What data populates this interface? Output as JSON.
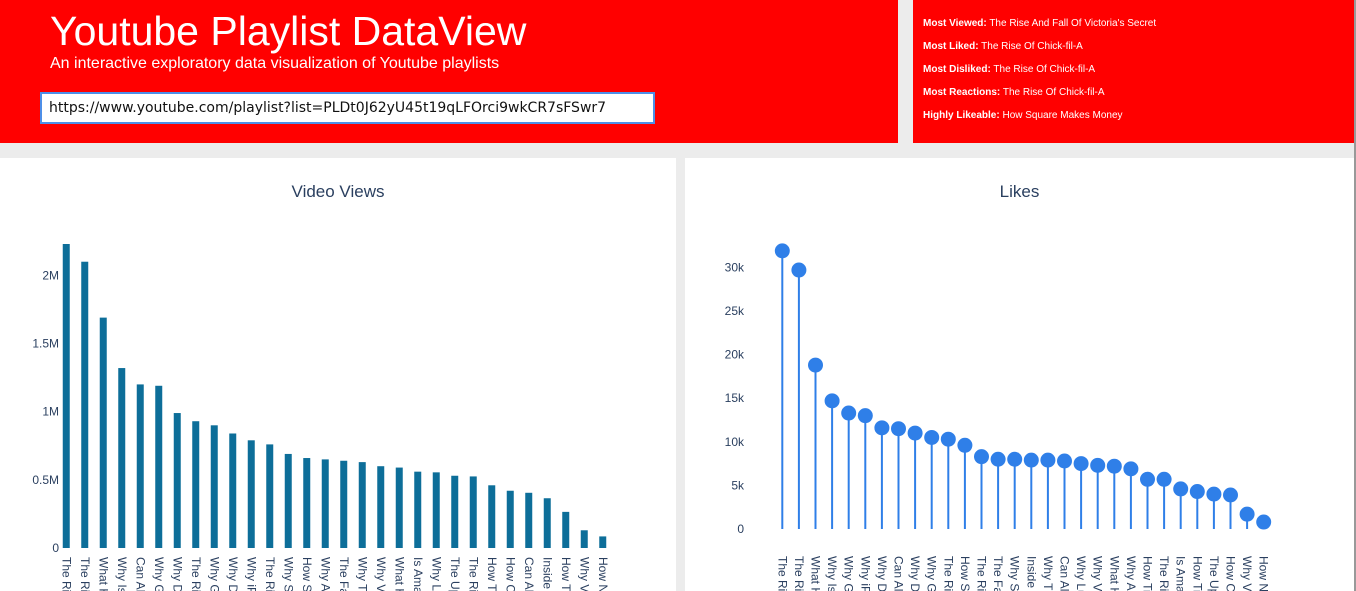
{
  "header": {
    "title": "Youtube Playlist DataView",
    "subtitle": "An interactive exploratory data visualization of Youtube playlists",
    "url_value": "https://www.youtube.com/playlist?list=PLDt0J62yU45t19qLFOrci9wkCR7sFSwr7",
    "background_color": "#ff0000"
  },
  "stats": [
    {
      "label": "Most Viewed:",
      "value": "The Rise And Fall Of Victoria's Secret"
    },
    {
      "label": "Most Liked:",
      "value": "The Rise Of Chick-fil-A"
    },
    {
      "label": "Most Disliked:",
      "value": "The Rise Of Chick-fil-A"
    },
    {
      "label": "Most Reactions:",
      "value": "The Rise Of Chick-fil-A"
    },
    {
      "label": "Highly Likeable:",
      "value": "How Square Makes Money"
    }
  ],
  "chart_data": [
    {
      "type": "bar",
      "title": "Video Views",
      "bar_color": "#0d6e99",
      "categories": [
        "The Ri",
        "The Ri",
        "What H",
        "Why Is",
        "Can Al",
        "Why G",
        "Why D",
        "The Ri",
        "Why G",
        "Why D",
        "Why iP",
        "The Ri",
        "Why S",
        "How S",
        "Why A",
        "The Fa",
        "Why T",
        "Why V",
        "What H",
        "Is Ama",
        "Why Lu",
        "The Up",
        "The Ri",
        "How Ti",
        "How C",
        "Can Al",
        "Inside",
        "How Ti",
        "Why V",
        "How N"
      ],
      "values": [
        2230000,
        2100000,
        1690000,
        1320000,
        1200000,
        1190000,
        990000,
        930000,
        900000,
        840000,
        790000,
        760000,
        690000,
        660000,
        650000,
        640000,
        630000,
        600000,
        590000,
        560000,
        555000,
        530000,
        525000,
        460000,
        420000,
        405000,
        365000,
        265000,
        130000,
        85000
      ],
      "yticks": [
        {
          "value": 0,
          "label": "0"
        },
        {
          "value": 500000,
          "label": "0.5M"
        },
        {
          "value": 1000000,
          "label": "1M"
        },
        {
          "value": 1500000,
          "label": "1.5M"
        },
        {
          "value": 2000000,
          "label": "2M"
        }
      ],
      "ylim": [
        0,
        2230000
      ]
    },
    {
      "type": "scatter",
      "title": "Likes",
      "marker_color": "#2f7fe8",
      "categories": [
        "The Ri",
        "The Ri",
        "What H",
        "Why Is",
        "Why G",
        "Why iP",
        "Why D",
        "Can Al",
        "Why D",
        "Why G",
        "The Ri",
        "How S",
        "The Ri",
        "The Fa",
        "Why S",
        "Inside",
        "Why T",
        "Can Al",
        "Why Lu",
        "Why V",
        "What H",
        "Why A",
        "How Ti",
        "The Ri",
        "Is Ama",
        "How Ti",
        "The Up",
        "How C",
        "Why V",
        "How N"
      ],
      "values": [
        31900,
        29700,
        18800,
        14700,
        13300,
        13000,
        11600,
        11500,
        11000,
        10500,
        10300,
        9600,
        8300,
        8000,
        8000,
        7900,
        7900,
        7800,
        7500,
        7300,
        7200,
        6900,
        5700,
        5700,
        4600,
        4300,
        4000,
        3900,
        1700,
        800
      ],
      "yticks": [
        {
          "value": 0,
          "label": "0"
        },
        {
          "value": 5000,
          "label": "5k"
        },
        {
          "value": 10000,
          "label": "10k"
        },
        {
          "value": 15000,
          "label": "15k"
        },
        {
          "value": 20000,
          "label": "20k"
        },
        {
          "value": 25000,
          "label": "25k"
        },
        {
          "value": 30000,
          "label": "30k"
        }
      ],
      "ylim": [
        0,
        32000
      ]
    }
  ]
}
